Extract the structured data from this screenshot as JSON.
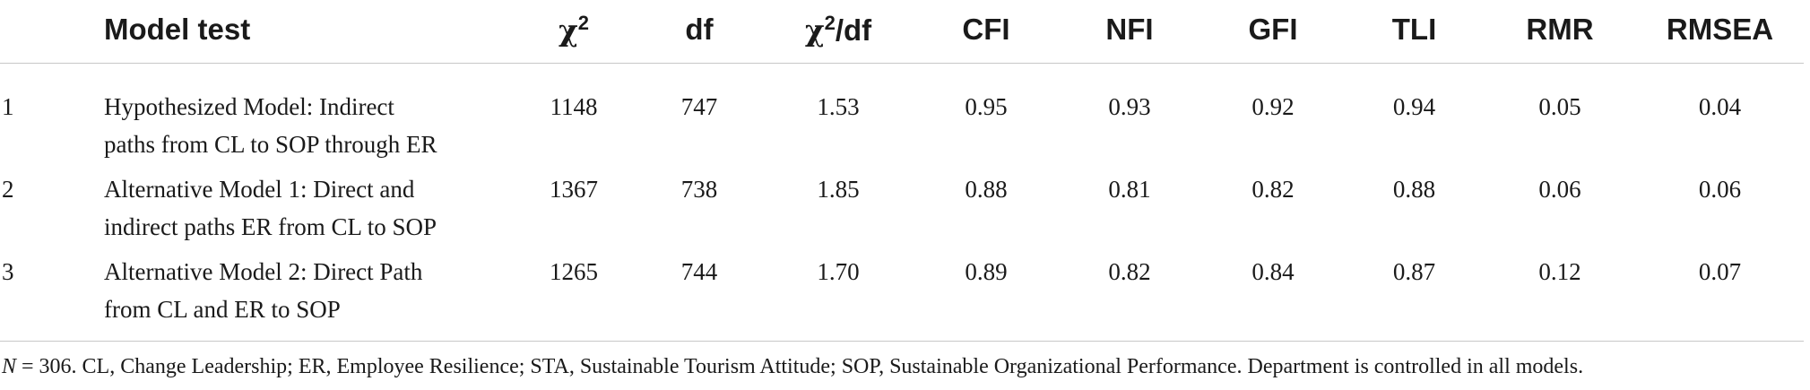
{
  "table": {
    "headers": {
      "num": "",
      "model_test": "Model test",
      "chi2_base": "χ",
      "chi2_sup": "2",
      "df": "df",
      "chi2df_base": "χ",
      "chi2df_sup": "2",
      "chi2df_rest": "/df",
      "cfi": "CFI",
      "nfi": "NFI",
      "gfi": "GFI",
      "tli": "TLI",
      "rmr": "RMR",
      "rmsea": "RMSEA"
    },
    "rows": [
      {
        "num": "1",
        "model_line1": "Hypothesized Model: Indirect",
        "model_line2": "paths from CL to SOP through ER",
        "chi2": "1148",
        "df": "747",
        "chi2df": "1.53",
        "cfi": "0.95",
        "nfi": "0.93",
        "gfi": "0.92",
        "tli": "0.94",
        "rmr": "0.05",
        "rmsea": "0.04"
      },
      {
        "num": "2",
        "model_line1": "Alternative Model 1: Direct and",
        "model_line2": "indirect paths ER from CL to SOP",
        "chi2": "1367",
        "df": "738",
        "chi2df": "1.85",
        "cfi": "0.88",
        "nfi": "0.81",
        "gfi": "0.82",
        "tli": "0.88",
        "rmr": "0.06",
        "rmsea": "0.06"
      },
      {
        "num": "3",
        "model_line1": "Alternative Model 2: Direct Path",
        "model_line2": "from CL and ER to SOP",
        "chi2": "1265",
        "df": "744",
        "chi2df": "1.70",
        "cfi": "0.89",
        "nfi": "0.82",
        "gfi": "0.84",
        "tli": "0.87",
        "rmr": "0.12",
        "rmsea": "0.07"
      }
    ]
  },
  "note": {
    "n_label": "N",
    "text": " = 306. CL, Change Leadership; ER, Employee Resilience; STA, Sustainable Tourism Attitude; SOP, Sustainable Organizational Performance. Department is controlled in all models."
  }
}
